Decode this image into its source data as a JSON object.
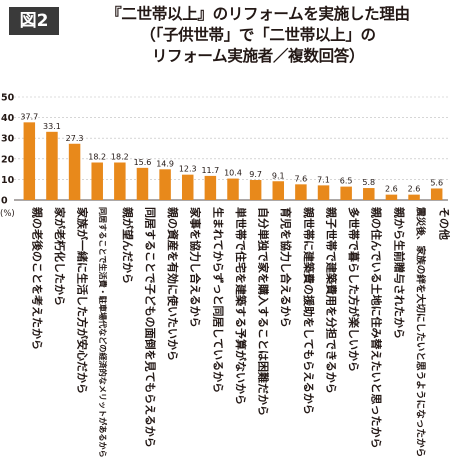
{
  "figure_label": "図2",
  "title_lines": [
    "『二世帯以上』のリフォームを実施した理由",
    "（「子供世帯」で「二世帯以上」の",
    "リフォーム実施者／複数回答）"
  ],
  "chart_data": {
    "type": "bar",
    "unit": "(%)",
    "ylim": [
      0,
      50
    ],
    "yticks": [
      0,
      10,
      20,
      30,
      40,
      50
    ],
    "grid": true,
    "bar_color": "#e8891b",
    "categories": [
      "親の老後のことを考えたから",
      "家が老朽化したから",
      "家族が一緒に生活した方が安心だから",
      "同居することで生活費・駐車場代などの経済的なメリットがあるから",
      "親が望んだから",
      "同居することで子どもの面倒を見てもらえるから",
      "親の資産を有効に使いたいから",
      "家事を協力し合えるから",
      "生まれてからずっと同居しているから",
      "単世帯で住宅を建築する予算がないから",
      "自分単独で家を購入することは困難だから",
      "育児を協力し合えるから",
      "親世帯に建築費の援助をしてもらえるから",
      "親子世帯で建築費用を分担できるから",
      "多世帯で暮らした方が楽しいから",
      "親の住んでいる土地に住み替えたいと思ったから",
      "親から生前贈与されたから",
      "震災後、家族の絆を大切にしたいと思うようになったから",
      "その他"
    ],
    "values": [
      37.7,
      33.1,
      27.3,
      18.2,
      18.2,
      15.6,
      14.9,
      12.3,
      11.7,
      10.4,
      9.7,
      9.1,
      7.6,
      7.1,
      6.5,
      5.8,
      2.6,
      2.6,
      5.6
    ],
    "value_labels": [
      "37.7",
      "33.1",
      "27.3",
      "18.2",
      "18.2",
      "15.6",
      "14.9",
      "12.3",
      "11.7",
      "10.4",
      "9.7",
      "9.1",
      "7.6",
      "7.1",
      "6.5",
      "5.8",
      "2.6",
      "2.6",
      "5.6"
    ]
  }
}
